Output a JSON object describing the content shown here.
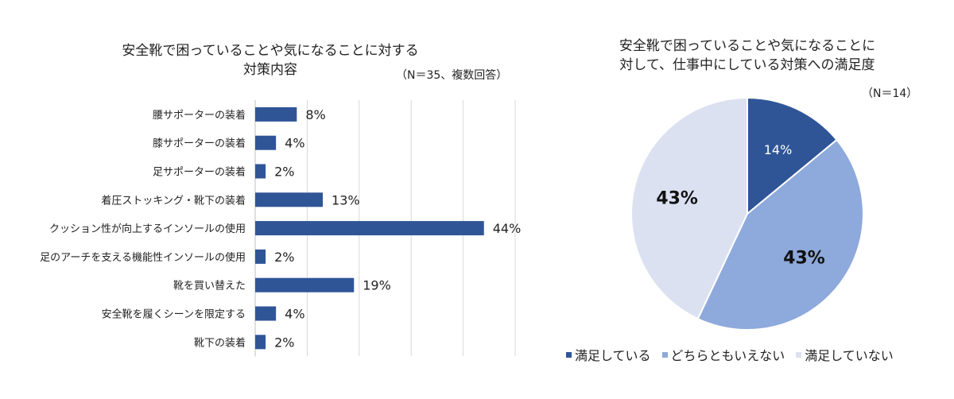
{
  "chart_data": [
    {
      "type": "bar",
      "orientation": "horizontal",
      "title": "安全靴で困っていることや気になることに対する\n対策内容",
      "note": "（N＝35、複数回答）",
      "categories": [
        "腰サポーターの装着",
        "膝サポーターの装着",
        "足サポーターの装着",
        "着圧ストッキング・靴下の装着",
        "クッション性が向上するインソールの使用",
        "足のアーチを支える機能性インソールの使用",
        "靴を買い替えた",
        "安全靴を履くシーンを限定する",
        "靴下の装着"
      ],
      "values": [
        8,
        4,
        2,
        13,
        44,
        2,
        19,
        4,
        2
      ],
      "value_labels": [
        "8%",
        "4%",
        "2%",
        "13%",
        "44%",
        "2%",
        "19%",
        "4%",
        "2%"
      ],
      "xlim": [
        0,
        50
      ],
      "grid": true,
      "color": "#2F5597"
    },
    {
      "type": "pie",
      "title": "安全靴で困っていることや気になることに\n対して、仕事中にしている対策への満足度",
      "note": "（N＝14）",
      "slices": [
        {
          "label": "満足している",
          "value": 14,
          "value_label": "14%",
          "color": "#2F5597"
        },
        {
          "label": "どちらともいえない",
          "value": 43,
          "value_label": "43%",
          "color": "#8EA9DB"
        },
        {
          "label": "満足していない",
          "value": 43,
          "value_label": "43%",
          "color": "#DCE1F2"
        }
      ],
      "legend": "bottom"
    }
  ]
}
